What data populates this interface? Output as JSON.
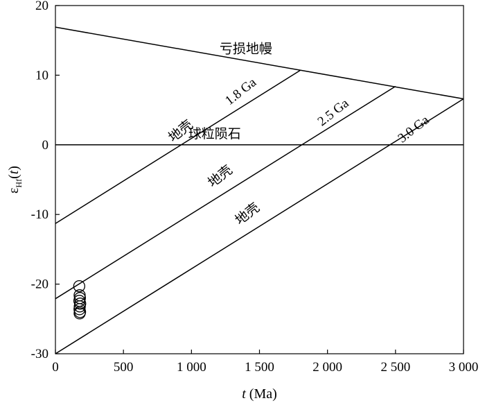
{
  "chart_data": {
    "type": "line",
    "xlabel_italic": "t",
    "xlabel_rest": " (Ma)",
    "ylabel_main": "ε",
    "ylabel_sub": "Hf",
    "ylabel_paren_open": "(",
    "ylabel_var": "t",
    "ylabel_paren_close": ")",
    "xlim": [
      0,
      3000
    ],
    "ylim": [
      -30,
      20
    ],
    "xticks": [
      0,
      500,
      1000,
      1500,
      2000,
      2500,
      3000
    ],
    "xtick_labels": [
      "0",
      "500",
      "1 000",
      "1 500",
      "2 000",
      "2 500",
      "3 000"
    ],
    "yticks": [
      -30,
      -20,
      -10,
      0,
      10,
      20
    ],
    "ytick_labels": [
      "-30",
      "-20",
      "-10",
      "0",
      "10",
      "20"
    ],
    "grid": false,
    "lines": [
      {
        "id": "depleted-mantle",
        "x": [
          0,
          3000
        ],
        "y": [
          16.9,
          6.6
        ]
      },
      {
        "id": "chondrite",
        "x": [
          0,
          3000
        ],
        "y": [
          0,
          0
        ]
      },
      {
        "id": "crust-1.8",
        "x": [
          0,
          1800
        ],
        "y": [
          -11.3,
          10.7
        ]
      },
      {
        "id": "crust-2.5",
        "x": [
          0,
          2500
        ],
        "y": [
          -22.1,
          8.4
        ]
      },
      {
        "id": "crust-3.0",
        "x": [
          0,
          3000
        ],
        "y": [
          -30,
          6.6
        ]
      }
    ],
    "annotations": [
      {
        "text": "亏损地幔",
        "x": 1400,
        "y": 13.2,
        "angle": 0,
        "serif": false
      },
      {
        "text": "球粒陨石",
        "x": 1170,
        "y": 1.0,
        "angle": 0,
        "serif": false
      },
      {
        "text": "1.8 Ga",
        "x": 1380,
        "y": 7.2,
        "angle": -38,
        "serif": true
      },
      {
        "text": "2.5 Ga",
        "x": 2060,
        "y": 4.2,
        "angle": -38,
        "serif": true
      },
      {
        "text": "3.0 Ga",
        "x": 2650,
        "y": 1.8,
        "angle": -38,
        "serif": true
      },
      {
        "text": "地壳",
        "x": 940,
        "y": 1.5,
        "angle": -38,
        "serif": false
      },
      {
        "text": "地壳",
        "x": 1230,
        "y": -5.0,
        "angle": -38,
        "serif": false
      },
      {
        "text": "地壳",
        "x": 1430,
        "y": -10.4,
        "angle": -38,
        "serif": false
      }
    ],
    "scatter": {
      "x": [
        175,
        178,
        180,
        176,
        182,
        179,
        177,
        181,
        178
      ],
      "y": [
        -20.3,
        -21.6,
        -22.0,
        -22.4,
        -22.8,
        -23.2,
        -23.6,
        -24.0,
        -24.2
      ]
    }
  }
}
